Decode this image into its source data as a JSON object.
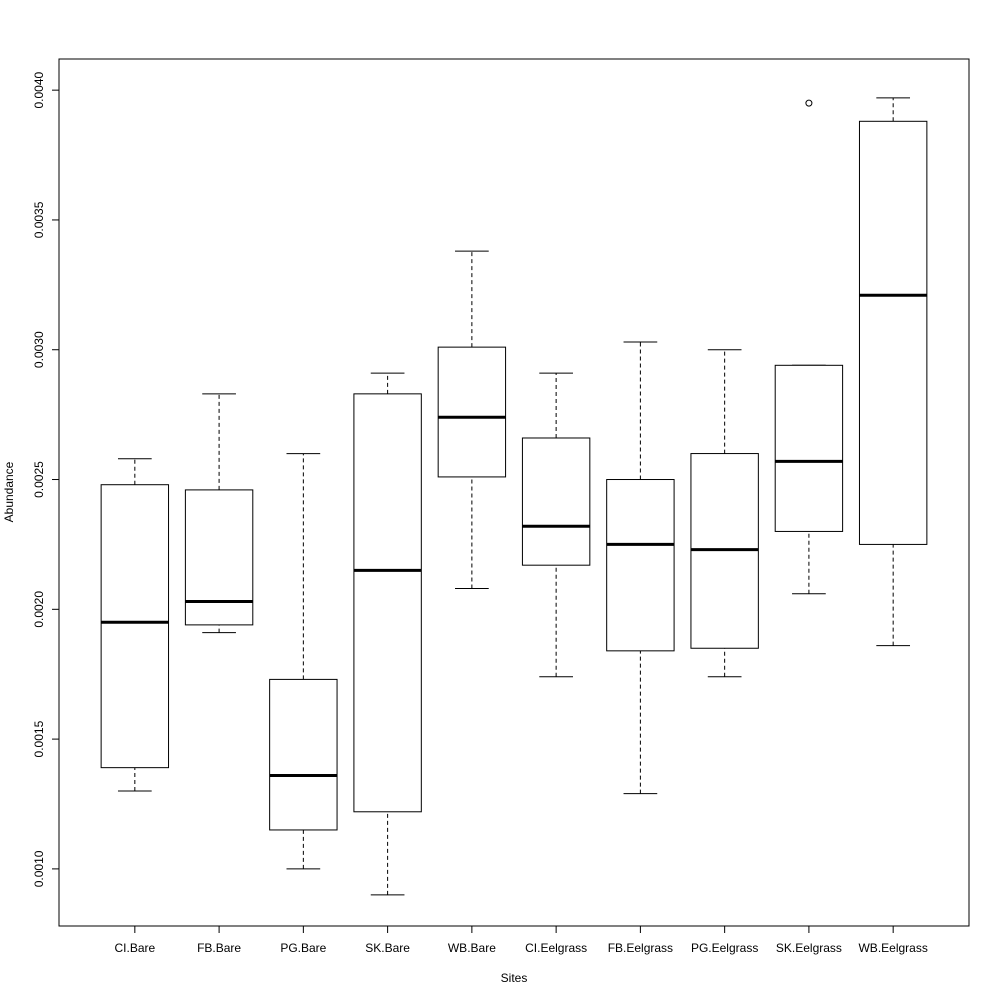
{
  "chart_data": {
    "type": "boxplot",
    "title": "",
    "xlabel": "Sites",
    "ylabel": "Abundance",
    "ylim": [
      0.00078,
      0.00412
    ],
    "yticks": [
      0.001,
      0.0015,
      0.002,
      0.0025,
      0.003,
      0.0035,
      0.004
    ],
    "ytick_labels": [
      "0.0010",
      "0.0015",
      "0.0020",
      "0.0025",
      "0.0030",
      "0.0035",
      "0.0040"
    ],
    "grid": false,
    "categories": [
      "CI.Bare",
      "FB.Bare",
      "PG.Bare",
      "SK.Bare",
      "WB.Bare",
      "CI.Eelgrass",
      "FB.Eelgrass",
      "PG.Eelgrass",
      "SK.Eelgrass",
      "WB.Eelgrass"
    ],
    "boxes": [
      {
        "category": "CI.Bare",
        "whisker_low": 0.0013,
        "q1": 0.00139,
        "median": 0.00195,
        "q3": 0.00248,
        "whisker_high": 0.00258,
        "outliers": []
      },
      {
        "category": "FB.Bare",
        "whisker_low": 0.00191,
        "q1": 0.00194,
        "median": 0.00203,
        "q3": 0.00246,
        "whisker_high": 0.00283,
        "outliers": []
      },
      {
        "category": "PG.Bare",
        "whisker_low": 0.001,
        "q1": 0.00115,
        "median": 0.00136,
        "q3": 0.00173,
        "whisker_high": 0.0026,
        "outliers": []
      },
      {
        "category": "SK.Bare",
        "whisker_low": 0.0009,
        "q1": 0.00122,
        "median": 0.00215,
        "q3": 0.00283,
        "whisker_high": 0.00291,
        "outliers": []
      },
      {
        "category": "WB.Bare",
        "whisker_low": 0.00208,
        "q1": 0.00251,
        "median": 0.00274,
        "q3": 0.00301,
        "whisker_high": 0.00338,
        "outliers": []
      },
      {
        "category": "CI.Eelgrass",
        "whisker_low": 0.00174,
        "q1": 0.00217,
        "median": 0.00232,
        "q3": 0.00266,
        "whisker_high": 0.00291,
        "outliers": []
      },
      {
        "category": "FB.Eelgrass",
        "whisker_low": 0.00129,
        "q1": 0.00184,
        "median": 0.00225,
        "q3": 0.0025,
        "whisker_high": 0.00303,
        "outliers": []
      },
      {
        "category": "PG.Eelgrass",
        "whisker_low": 0.00174,
        "q1": 0.00185,
        "median": 0.00223,
        "q3": 0.0026,
        "whisker_high": 0.003,
        "outliers": []
      },
      {
        "category": "SK.Eelgrass",
        "whisker_low": 0.00206,
        "q1": 0.0023,
        "median": 0.00257,
        "q3": 0.00294,
        "whisker_high": 0.00294,
        "outliers": [
          0.00395
        ]
      },
      {
        "category": "WB.Eelgrass",
        "whisker_low": 0.00186,
        "q1": 0.00225,
        "median": 0.00321,
        "q3": 0.00388,
        "whisker_high": 0.00397,
        "outliers": []
      }
    ]
  }
}
